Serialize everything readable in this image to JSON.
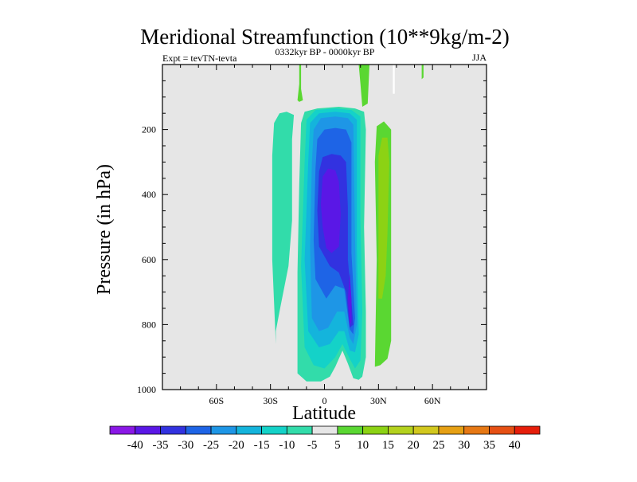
{
  "chart_data": {
    "type": "heatmap",
    "title": "Meridional Streamfunction (10**9kg/m-2)",
    "subtitle": "0332kyr BP - 0000kyr BP",
    "left_string": "Expt = tevTN-tevta",
    "right_string": "JJA",
    "xlabel": "Latitude",
    "ylabel": "Pressure (in hPa)",
    "xlim": [
      -90,
      90
    ],
    "ylim": [
      1000,
      0
    ],
    "x_ticks": [
      {
        "value": -60,
        "label": "60S"
      },
      {
        "value": -30,
        "label": "30S"
      },
      {
        "value": 0,
        "label": "0"
      },
      {
        "value": 30,
        "label": "30N"
      },
      {
        "value": 60,
        "label": "60N"
      }
    ],
    "y_ticks": [
      {
        "value": 200,
        "label": "200"
      },
      {
        "value": 400,
        "label": "400"
      },
      {
        "value": 600,
        "label": "600"
      },
      {
        "value": 800,
        "label": "800"
      },
      {
        "value": 1000,
        "label": "1000"
      }
    ],
    "background_color": "#e6e6e6",
    "contour_levels": [
      -40,
      -35,
      -30,
      -25,
      -20,
      -15,
      -10,
      -5,
      5,
      10,
      15,
      20,
      25,
      30,
      35,
      40
    ],
    "colorbar_labels": [
      "-40",
      "-35",
      "-30",
      "-25",
      "-20",
      "-15",
      "-10",
      "-5",
      "5",
      "10",
      "15",
      "20",
      "25",
      "30",
      "35",
      "40"
    ],
    "colorbar_colors": [
      "#8a18e6",
      "#5a17e6",
      "#3232e0",
      "#1e64e6",
      "#1e96e6",
      "#14b4dc",
      "#14d2c8",
      "#32dcaa",
      "#e6e6e6",
      "#5ad732",
      "#8cd214",
      "#b4d21e",
      "#d2c81e",
      "#e6a014",
      "#e67814",
      "#e65014",
      "#e61e0a"
    ],
    "regions": [
      {
        "level": -10,
        "color": "#32dcaa",
        "points": [
          [
            -27,
            860
          ],
          [
            -29,
            600
          ],
          [
            -29,
            280
          ],
          [
            -28,
            180
          ],
          [
            -25,
            150
          ],
          [
            -21,
            145
          ],
          [
            -17,
            155
          ],
          [
            -18,
            230
          ],
          [
            -18,
            480
          ],
          [
            -20,
            620
          ],
          [
            -25,
            760
          ],
          [
            -27,
            820
          ]
        ]
      },
      {
        "level": -10,
        "color": "#32dcaa",
        "points": [
          [
            -15,
            950
          ],
          [
            -15,
            640
          ],
          [
            -14,
            370
          ],
          [
            -13,
            180
          ],
          [
            -11,
            145
          ],
          [
            -4,
            135
          ],
          [
            8,
            130
          ],
          [
            17,
            135
          ],
          [
            22,
            145
          ],
          [
            23,
            200
          ],
          [
            22,
            500
          ],
          [
            23,
            760
          ],
          [
            23,
            900
          ],
          [
            21,
            960
          ],
          [
            19,
            970
          ],
          [
            16,
            965
          ],
          [
            13,
            920
          ],
          [
            10,
            880
          ],
          [
            6,
            930
          ],
          [
            3,
            960
          ],
          [
            -2,
            975
          ],
          [
            -10,
            975
          ]
        ]
      },
      {
        "level": -15,
        "color": "#14d2c8",
        "points": [
          [
            -11,
            870
          ],
          [
            -13,
            620
          ],
          [
            -11,
            300
          ],
          [
            -10,
            170
          ],
          [
            -5,
            140
          ],
          [
            6,
            135
          ],
          [
            15,
            140
          ],
          [
            20,
            160
          ],
          [
            20,
            480
          ],
          [
            21,
            760
          ],
          [
            20,
            910
          ],
          [
            17,
            935
          ],
          [
            14,
            905
          ],
          [
            10,
            860
          ],
          [
            6,
            900
          ],
          [
            0,
            935
          ],
          [
            -6,
            925
          ]
        ]
      },
      {
        "level": -20,
        "color": "#14b4dc",
        "points": [
          [
            -9,
            820
          ],
          [
            -11,
            600
          ],
          [
            -9,
            300
          ],
          [
            -8,
            180
          ],
          [
            -3,
            150
          ],
          [
            6,
            145
          ],
          [
            14,
            150
          ],
          [
            18,
            170
          ],
          [
            18,
            560
          ],
          [
            19,
            830
          ],
          [
            17,
            885
          ],
          [
            14,
            880
          ],
          [
            11,
            820
          ],
          [
            8,
            820
          ],
          [
            3,
            860
          ],
          [
            -3,
            870
          ]
        ]
      },
      {
        "level": -25,
        "color": "#1e96e6",
        "points": [
          [
            -7,
            780
          ],
          [
            -8,
            560
          ],
          [
            -7,
            300
          ],
          [
            -6,
            200
          ],
          [
            -2,
            165
          ],
          [
            6,
            160
          ],
          [
            13,
            165
          ],
          [
            16,
            185
          ],
          [
            17,
            540
          ],
          [
            18,
            800
          ],
          [
            16,
            860
          ],
          [
            14,
            840
          ],
          [
            11,
            760
          ],
          [
            7,
            760
          ],
          [
            2,
            810
          ],
          [
            -3,
            820
          ]
        ]
      },
      {
        "level": -30,
        "color": "#1e64e6",
        "points": [
          [
            -5,
            660
          ],
          [
            -6,
            540
          ],
          [
            -5,
            320
          ],
          [
            -4,
            230
          ],
          [
            0,
            200
          ],
          [
            6,
            195
          ],
          [
            12,
            200
          ],
          [
            15,
            240
          ],
          [
            15,
            580
          ],
          [
            17,
            780
          ],
          [
            16,
            830
          ],
          [
            14,
            815
          ],
          [
            11,
            690
          ],
          [
            6,
            680
          ],
          [
            1,
            720
          ]
        ]
      },
      {
        "level": -35,
        "color": "#3232e0",
        "points": [
          [
            -3,
            560
          ],
          [
            -4,
            450
          ],
          [
            -3,
            330
          ],
          [
            -1,
            285
          ],
          [
            4,
            275
          ],
          [
            9,
            280
          ],
          [
            12,
            300
          ],
          [
            13,
            440
          ],
          [
            13,
            600
          ],
          [
            15,
            730
          ],
          [
            16,
            800
          ],
          [
            14,
            810
          ],
          [
            12,
            700
          ],
          [
            8,
            640
          ],
          [
            3,
            620
          ]
        ]
      },
      {
        "level": -40,
        "color": "#5a17e6",
        "points": [
          [
            -1,
            500
          ],
          [
            -2,
            430
          ],
          [
            -1,
            345
          ],
          [
            2,
            320
          ],
          [
            6,
            325
          ],
          [
            8,
            360
          ],
          [
            9,
            460
          ],
          [
            8,
            560
          ],
          [
            4,
            580
          ],
          [
            1,
            565
          ]
        ]
      },
      {
        "level": -40,
        "color": "#5a17e6",
        "points": [
          [
            14,
            640
          ],
          [
            15,
            720
          ],
          [
            15,
            790
          ],
          [
            14,
            805
          ],
          [
            13,
            720
          ]
        ]
      },
      {
        "level": 5,
        "color": "#5ad732",
        "points": [
          [
            -14,
            0
          ],
          [
            -13,
            0
          ],
          [
            -13,
            75
          ],
          [
            -12,
            110
          ],
          [
            -14,
            115
          ],
          [
            -15,
            110
          ],
          [
            -14,
            60
          ]
        ]
      },
      {
        "level": 5,
        "color": "#5ad732",
        "points": [
          [
            19,
            0
          ],
          [
            25,
            0
          ],
          [
            24,
            120
          ],
          [
            21,
            130
          ],
          [
            20,
            60
          ]
        ]
      },
      {
        "level": 5,
        "color": "#5ad732",
        "points": [
          [
            28,
            930
          ],
          [
            29,
            600
          ],
          [
            28,
            300
          ],
          [
            29,
            190
          ],
          [
            33,
            175
          ],
          [
            37,
            200
          ],
          [
            37,
            500
          ],
          [
            37,
            850
          ],
          [
            35,
            905
          ],
          [
            31,
            925
          ]
        ]
      },
      {
        "level": 10,
        "color": "#8cd214",
        "points": [
          [
            30,
            720
          ],
          [
            30,
            500
          ],
          [
            30,
            280
          ],
          [
            32,
            225
          ],
          [
            35,
            225
          ],
          [
            36,
            300
          ],
          [
            35,
            520
          ],
          [
            34,
            650
          ],
          [
            32,
            720
          ]
        ]
      },
      {
        "level": 5,
        "color": "#5ad732",
        "points": [
          [
            54,
            0
          ],
          [
            55,
            0
          ],
          [
            55,
            40
          ],
          [
            54,
            45
          ]
        ]
      },
      {
        "level": 0,
        "color": "#ffffff",
        "points": [
          [
            38,
            0
          ],
          [
            39,
            0
          ],
          [
            39,
            90
          ],
          [
            38,
            90
          ]
        ]
      }
    ]
  }
}
